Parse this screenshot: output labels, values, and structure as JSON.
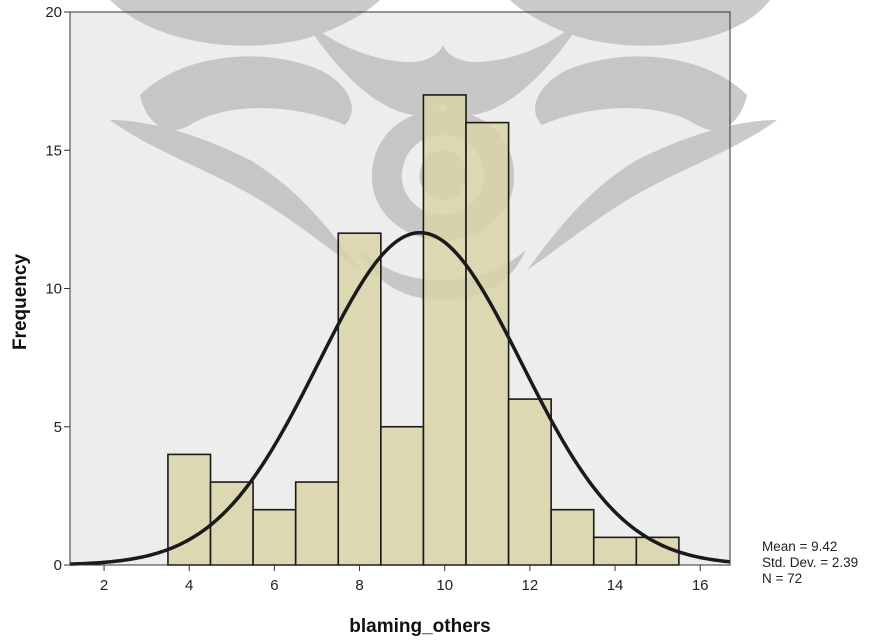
{
  "chart_data": {
    "type": "bar",
    "subtype": "histogram",
    "xlabel": "blaming_others",
    "ylabel": "Frequency",
    "xlim": [
      1.2,
      16.7
    ],
    "ylim": [
      0,
      20
    ],
    "x_ticks": [
      2,
      4,
      6,
      8,
      10,
      12,
      14,
      16
    ],
    "y_ticks": [
      0,
      5,
      10,
      15,
      20
    ],
    "grid": false,
    "bins": [
      {
        "x0": 3.5,
        "x1": 4.5,
        "count": 4
      },
      {
        "x0": 4.5,
        "x1": 5.5,
        "count": 3
      },
      {
        "x0": 5.5,
        "x1": 6.5,
        "count": 2
      },
      {
        "x0": 6.5,
        "x1": 7.5,
        "count": 3
      },
      {
        "x0": 7.5,
        "x1": 8.5,
        "count": 12
      },
      {
        "x0": 8.5,
        "x1": 9.5,
        "count": 5
      },
      {
        "x0": 9.5,
        "x1": 10.5,
        "count": 17
      },
      {
        "x0": 10.5,
        "x1": 11.5,
        "count": 16
      },
      {
        "x0": 11.5,
        "x1": 12.5,
        "count": 6
      },
      {
        "x0": 12.5,
        "x1": 13.5,
        "count": 2
      },
      {
        "x0": 13.5,
        "x1": 14.5,
        "count": 1
      },
      {
        "x0": 14.5,
        "x1": 15.5,
        "count": 1
      }
    ],
    "normal_curve": {
      "mean": 9.42,
      "sd": 2.39,
      "n": 72,
      "bin_width": 1
    },
    "stats": {
      "mean": "Mean = 9.42",
      "std_dev": "Std. Dev. = 2.39",
      "n": "N = 72"
    },
    "colors": {
      "plot_background": "#ededed",
      "bar_fill": "#d8d3a6",
      "bar_stroke": "#1a1a1a",
      "curve": "#1a1a1a",
      "watermark": "#b9b9b9"
    }
  }
}
